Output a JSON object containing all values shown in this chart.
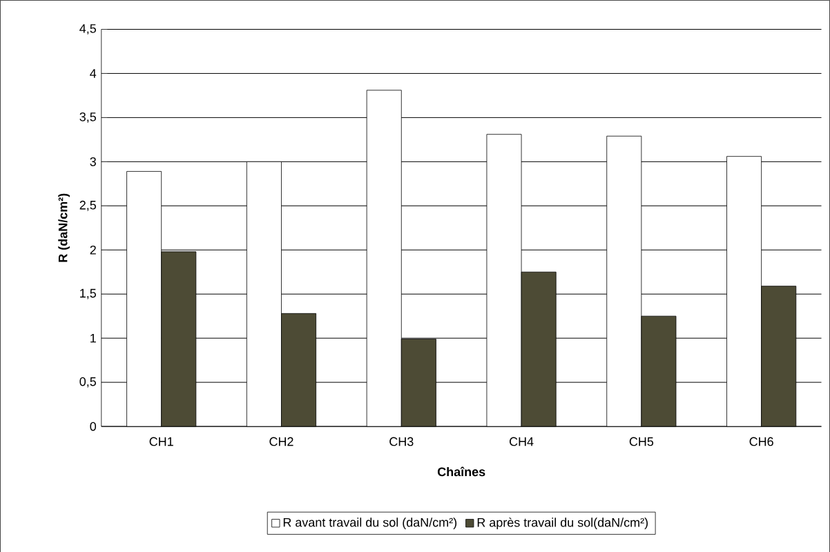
{
  "chart_data": {
    "type": "bar",
    "xlabel": "Chaînes",
    "ylabel": "R (daN/cm²)",
    "categories": [
      "CH1",
      "CH2",
      "CH3",
      "CH4",
      "CH5",
      "CH6"
    ],
    "series": [
      {
        "name": "R avant travail du sol (daN/cm²)",
        "color": "#ffffff",
        "values": [
          2.89,
          3.0,
          3.81,
          3.31,
          3.29,
          3.06
        ]
      },
      {
        "name": "R après travail du sol(daN/cm²)",
        "color": "#4d4b35",
        "values": [
          1.98,
          1.28,
          0.99,
          1.75,
          1.25,
          1.59
        ]
      }
    ],
    "ylim": [
      0,
      4.5
    ],
    "yticks": [
      0,
      {
        "value": 0.5,
        "label": "0,5"
      },
      1,
      {
        "value": 1.5,
        "label": "1,5"
      },
      2,
      {
        "value": 2.5,
        "label": "2,5"
      },
      3,
      {
        "value": 3.5,
        "label": "3,5"
      },
      4,
      {
        "value": 4.5,
        "label": "4,5"
      }
    ],
    "grid": "y",
    "legend": "bottom"
  }
}
